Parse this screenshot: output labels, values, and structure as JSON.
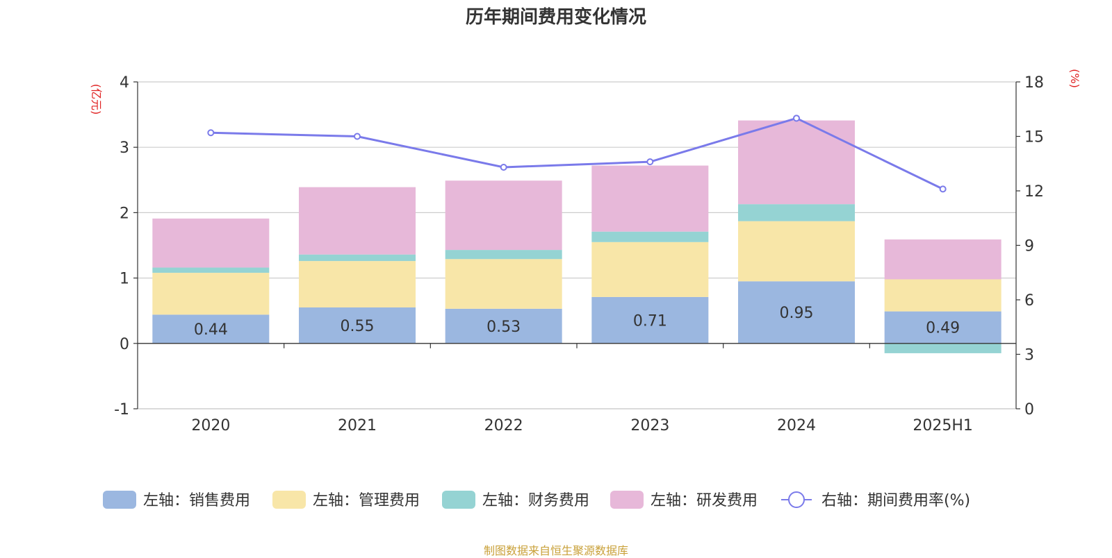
{
  "title": "历年期间费用变化情况",
  "source": "制图数据来自恒生聚源数据库",
  "chart_data": {
    "type": "bar",
    "stacked": true,
    "categories": [
      "2020",
      "2021",
      "2022",
      "2023",
      "2024",
      "2025H1"
    ],
    "left_axis": {
      "unit": "(亿元)",
      "ylim": [
        -1,
        4
      ],
      "ticks": [
        "4",
        "3",
        "2",
        "1",
        "0",
        "-1"
      ]
    },
    "right_axis": {
      "unit": "(%)",
      "ylim": [
        0,
        18
      ],
      "ticks": [
        "18",
        "15",
        "12",
        "9",
        "6",
        "3",
        "0"
      ]
    },
    "series": [
      {
        "name": "左轴：销售费用",
        "axis": "left",
        "type": "bar",
        "color": "#9bb7e0",
        "values": [
          0.44,
          0.55,
          0.53,
          0.71,
          0.95,
          0.49
        ],
        "labels": [
          "0.44",
          "0.55",
          "0.53",
          "0.71",
          "0.95",
          "0.49"
        ]
      },
      {
        "name": "左轴：管理费用",
        "axis": "left",
        "type": "bar",
        "color": "#f8e6a8",
        "values": [
          0.64,
          0.71,
          0.76,
          0.84,
          0.92,
          0.49
        ]
      },
      {
        "name": "左轴：财务费用",
        "axis": "left",
        "type": "bar",
        "color": "#95d3d3",
        "values": [
          0.08,
          0.1,
          0.14,
          0.16,
          0.26,
          -0.15
        ]
      },
      {
        "name": "左轴：研发费用",
        "axis": "left",
        "type": "bar",
        "color": "#e7b8d9",
        "values": [
          0.75,
          1.03,
          1.06,
          1.01,
          1.28,
          0.61
        ]
      },
      {
        "name": "右轴：期间费用率(%)",
        "axis": "right",
        "type": "line",
        "color": "#7a7aea",
        "values": [
          15.2,
          15.0,
          13.3,
          13.6,
          16.0,
          12.1
        ]
      }
    ],
    "grid": true,
    "legend_position": "bottom"
  }
}
